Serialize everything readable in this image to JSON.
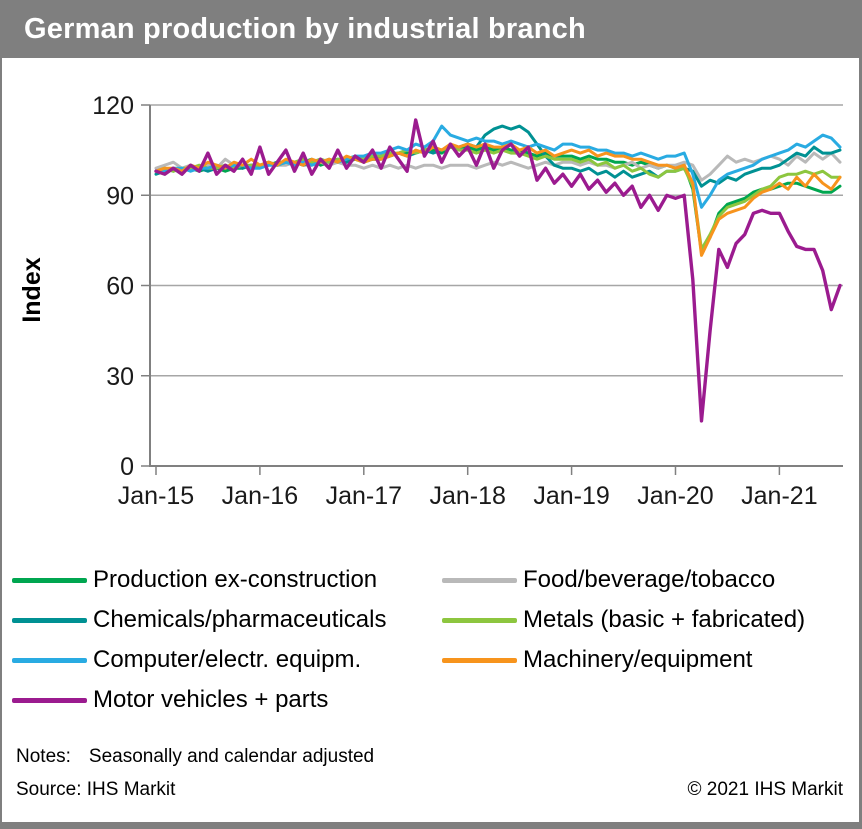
{
  "header": {
    "title": "German production by industrial branch",
    "bar_color": "#7f7f7f"
  },
  "chart_data": {
    "type": "line",
    "title": "German production by industrial branch",
    "xlabel": "",
    "ylabel": "Index",
    "ylim": [
      0,
      120
    ],
    "yticks": [
      0,
      30,
      60,
      90,
      120
    ],
    "grid": "horizontal",
    "legend_position": "bottom",
    "x_frequency": "monthly",
    "x_range": [
      "Jan-2015",
      "Aug-2021"
    ],
    "x_tick_labels": [
      "Jan-15",
      "Jan-16",
      "Jan-17",
      "Jan-18",
      "Jan-19",
      "Jan-20",
      "Jan-21"
    ],
    "x_tick_indices": [
      0,
      12,
      24,
      36,
      48,
      60,
      72
    ],
    "axis_color": "#808080",
    "grid_color": "#a6a6a6",
    "series": [
      {
        "name": "Production ex-construction",
        "color": "#00A650",
        "values": [
          98,
          99,
          98,
          99,
          99,
          98,
          99,
          99,
          98,
          99,
          99,
          100,
          100,
          100,
          101,
          101,
          100,
          101,
          102,
          100,
          101,
          101,
          102,
          102,
          102,
          102,
          103,
          103,
          104,
          104,
          104,
          105,
          105,
          104,
          106,
          106,
          106,
          105,
          106,
          105,
          106,
          105,
          105,
          104,
          103,
          104,
          103,
          103,
          103,
          102,
          103,
          102,
          102,
          101,
          101,
          100,
          101,
          100,
          99,
          100,
          99,
          100,
          92,
          71,
          76,
          84,
          87,
          88,
          89,
          91,
          92,
          92,
          93,
          94,
          94,
          93,
          92,
          91,
          91,
          93
        ]
      },
      {
        "name": "Food/beverage/tobacco",
        "color": "#B9B9B9",
        "values": [
          99,
          100,
          101,
          99,
          100,
          99,
          100,
          99,
          102,
          100,
          99,
          100,
          100,
          101,
          100,
          100,
          101,
          100,
          100,
          101,
          100,
          101,
          100,
          100,
          99,
          100,
          99,
          100,
          99,
          100,
          99,
          100,
          100,
          99,
          100,
          100,
          100,
          99,
          100,
          101,
          100,
          101,
          100,
          99,
          100,
          101,
          100,
          101,
          101,
          100,
          101,
          100,
          100,
          99,
          100,
          101,
          99,
          100,
          99,
          100,
          100,
          101,
          100,
          95,
          97,
          100,
          103,
          101,
          102,
          101,
          102,
          103,
          102,
          100,
          103,
          101,
          104,
          102,
          104,
          101
        ]
      },
      {
        "name": "Chemicals/pharmaceuticals",
        "color": "#009193",
        "values": [
          97,
          98,
          99,
          98,
          99,
          99,
          98,
          99,
          99,
          100,
          99,
          100,
          100,
          101,
          100,
          101,
          101,
          100,
          101,
          102,
          101,
          102,
          101,
          102,
          101,
          102,
          102,
          103,
          104,
          103,
          104,
          105,
          104,
          105,
          106,
          106,
          107,
          106,
          110,
          112,
          113,
          112,
          113,
          111,
          107,
          103,
          100,
          99,
          99,
          98,
          99,
          97,
          98,
          96,
          98,
          96,
          97,
          98,
          96,
          98,
          98,
          99,
          98,
          93,
          95,
          94,
          96,
          95,
          97,
          98,
          99,
          99,
          100,
          102,
          104,
          103,
          106,
          104,
          104,
          105
        ]
      },
      {
        "name": "Metals (basic + fabricated)",
        "color": "#8DC63F",
        "values": [
          98,
          99,
          98,
          99,
          99,
          100,
          99,
          99,
          100,
          99,
          100,
          100,
          100,
          101,
          100,
          101,
          101,
          102,
          101,
          102,
          101,
          102,
          102,
          103,
          102,
          103,
          103,
          104,
          104,
          105,
          104,
          105,
          106,
          105,
          106,
          105,
          105,
          104,
          105,
          104,
          105,
          104,
          104,
          103,
          102,
          103,
          102,
          102,
          102,
          101,
          102,
          100,
          101,
          99,
          100,
          98,
          99,
          97,
          96,
          98,
          98,
          99,
          93,
          72,
          77,
          83,
          86,
          87,
          88,
          90,
          92,
          93,
          96,
          97,
          97,
          98,
          97,
          98,
          96,
          96
        ]
      },
      {
        "name": "Computer/electr. equipm.",
        "color": "#29ABE2",
        "values": [
          98,
          98,
          99,
          99,
          98,
          99,
          99,
          100,
          99,
          100,
          100,
          99,
          99,
          100,
          100,
          101,
          100,
          101,
          100,
          101,
          102,
          101,
          102,
          103,
          103,
          104,
          104,
          105,
          106,
          105,
          107,
          106,
          108,
          113,
          110,
          109,
          108,
          109,
          108,
          108,
          107,
          108,
          107,
          106,
          107,
          106,
          105,
          107,
          107,
          106,
          106,
          105,
          105,
          104,
          104,
          103,
          104,
          103,
          102,
          103,
          103,
          104,
          97,
          86,
          90,
          95,
          97,
          98,
          99,
          100,
          102,
          103,
          104,
          105,
          107,
          106,
          108,
          110,
          109,
          106
        ]
      },
      {
        "name": "Machinery/equipment",
        "color": "#F7941D",
        "values": [
          98,
          99,
          99,
          98,
          100,
          99,
          101,
          100,
          99,
          101,
          100,
          102,
          100,
          101,
          100,
          102,
          101,
          100,
          102,
          101,
          102,
          101,
          103,
          102,
          101,
          102,
          102,
          103,
          104,
          103,
          105,
          104,
          106,
          105,
          107,
          106,
          107,
          106,
          107,
          106,
          106,
          107,
          105,
          106,
          104,
          105,
          103,
          104,
          105,
          104,
          105,
          103,
          104,
          103,
          103,
          102,
          102,
          101,
          100,
          100,
          99,
          100,
          94,
          70,
          76,
          82,
          84,
          85,
          86,
          89,
          91,
          92,
          94,
          92,
          96,
          93,
          97,
          94,
          92,
          96
        ]
      },
      {
        "name": "Motor vehicles + parts",
        "color": "#9B1B8F",
        "values": [
          98,
          97,
          99,
          97,
          100,
          98,
          104,
          97,
          100,
          98,
          102,
          97,
          106,
          97,
          101,
          105,
          98,
          104,
          97,
          102,
          99,
          105,
          99,
          103,
          101,
          105,
          99,
          106,
          102,
          98,
          115,
          103,
          108,
          101,
          107,
          103,
          106,
          100,
          107,
          99,
          105,
          107,
          103,
          106,
          95,
          99,
          94,
          97,
          93,
          97,
          92,
          95,
          91,
          94,
          90,
          93,
          86,
          90,
          85,
          90,
          89,
          90,
          62,
          15,
          45,
          72,
          66,
          74,
          77,
          84,
          85,
          84,
          84,
          78,
          73,
          72,
          72,
          65,
          52,
          60
        ]
      }
    ]
  },
  "legend": {
    "columns": [
      [
        "Production ex-construction",
        "Chemicals/pharmaceuticals",
        "Computer/electr. equipm.",
        "Motor vehicles + parts"
      ],
      [
        "Food/beverage/tobacco",
        "Metals (basic + fabricated)",
        "Machinery/equipment"
      ]
    ]
  },
  "footer": {
    "notes_label": "Notes:",
    "notes": "Seasonally and calendar adjusted",
    "source": "Source: IHS Markit",
    "copyright": "© 2021 IHS Markit"
  }
}
